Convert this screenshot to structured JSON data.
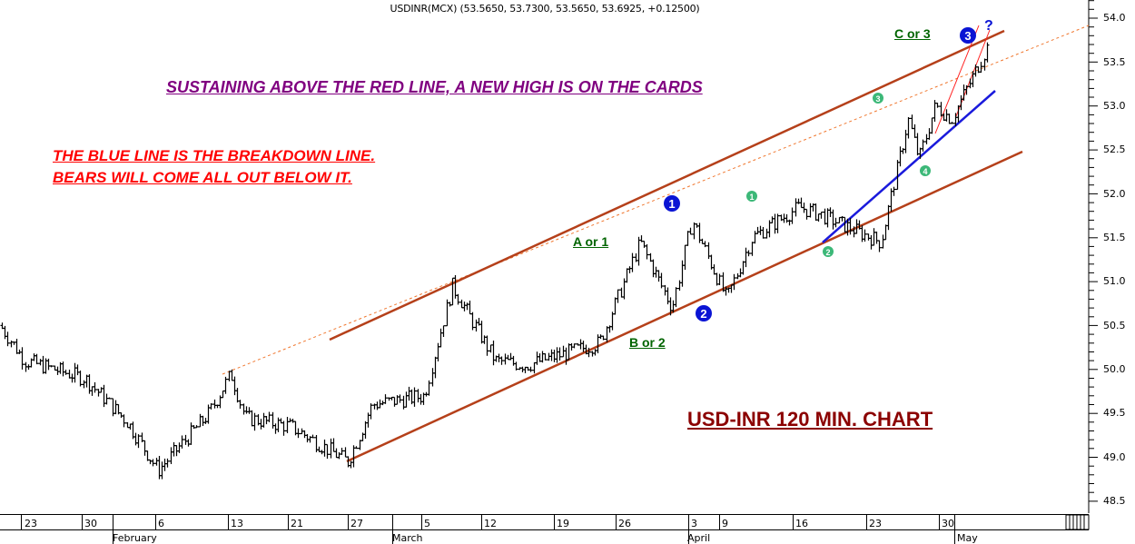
{
  "header": {
    "title": "USDINR(MCX) (53.5650, 53.7300, 53.5650, 53.6925, +0.12500)"
  },
  "annotations": {
    "purple": "SUSTAINING ABOVE THE RED LINE, A NEW HIGH IS ON THE CARDS",
    "red_line1": "THE BLUE LINE IS THE BREAKDOWN LINE.",
    "red_line2": "BEARS WILL COME ALL OUT BELOW IT.",
    "chart_caption": "USD-INR 120 MIN. CHART"
  },
  "wave_labels": {
    "a_or_1": "A or 1",
    "b_or_2": "B or 2",
    "c_or_3": "C or 3",
    "question": "?"
  },
  "wave_markers": {
    "major_1": "1",
    "major_2": "2",
    "major_3": "3",
    "minor_1": "1",
    "minor_2": "2",
    "minor_3": "3",
    "minor_4": "4"
  },
  "colors": {
    "channel": "#b5401a",
    "channel_dashed": "#f07830",
    "breakdown_line": "#1a1adc",
    "wedge": "#ff2020",
    "major_marker": "#0a14d4",
    "minor_marker": "#3cb878",
    "wave_label": "#006400",
    "purple_text": "#800080",
    "red_text": "#ff0000",
    "caption": "#8b0000"
  },
  "chart_data": {
    "type": "bar",
    "subtype": "ohlc",
    "title": "USDINR(MCX) (53.5650, 53.7300, 53.5650, 53.6925, +0.12500)",
    "caption": "USD-INR 120 MIN. CHART",
    "symbol": "USDINR(MCX)",
    "last_bar": {
      "open": 53.565,
      "high": 53.73,
      "low": 53.565,
      "close": 53.6925,
      "change": 0.125
    },
    "xlabel": "",
    "ylabel": "",
    "ylim": [
      48.3,
      54.2
    ],
    "y_ticks": [
      "54.0",
      "53.5",
      "53.0",
      "52.5",
      "52.0",
      "51.5",
      "51.0",
      "50.5",
      "50.0",
      "49.5",
      "49.0",
      "48.5"
    ],
    "x_ticks": [
      "23",
      "30",
      "6",
      "13",
      "21",
      "27",
      "5",
      "12",
      "19",
      "26",
      "3",
      "9",
      "16",
      "23",
      "30"
    ],
    "x_months": [
      "February",
      "March",
      "April",
      "May"
    ],
    "grid": false,
    "approx_price_path": [
      {
        "date": "Jan 20",
        "price": 50.5
      },
      {
        "date": "Jan 23",
        "price": 50.1
      },
      {
        "date": "Jan 30",
        "price": 49.9
      },
      {
        "date": "Feb 2",
        "price": 49.4
      },
      {
        "date": "Feb 6",
        "price": 48.85
      },
      {
        "date": "Feb 10",
        "price": 49.5
      },
      {
        "date": "Feb 13",
        "price": 49.95
      },
      {
        "date": "Feb 15",
        "price": 49.45
      },
      {
        "date": "Feb 21",
        "price": 49.35
      },
      {
        "date": "Feb 27",
        "price": 48.95
      },
      {
        "date": "Mar 1",
        "price": 49.6
      },
      {
        "date": "Mar 5",
        "price": 49.7
      },
      {
        "date": "Mar 9",
        "price": 50.95
      },
      {
        "date": "Mar 12",
        "price": 50.1
      },
      {
        "date": "Mar 16",
        "price": 50.05
      },
      {
        "date": "Mar 20",
        "price": 50.3
      },
      {
        "date": "Mar 26",
        "price": 51.45
      },
      {
        "date": "Mar 28",
        "price": 50.7
      },
      {
        "date": "Apr 1",
        "price": 51.7
      },
      {
        "date": "Apr 3",
        "price": 50.8
      },
      {
        "date": "Apr 6",
        "price": 51.5
      },
      {
        "date": "Apr 11",
        "price": 51.85
      },
      {
        "date": "Apr 16",
        "price": 51.75
      },
      {
        "date": "Apr 18",
        "price": 51.45
      },
      {
        "date": "Apr 23",
        "price": 52.85
      },
      {
        "date": "Apr 26",
        "price": 52.4
      },
      {
        "date": "Apr 28",
        "price": 53.0
      },
      {
        "date": "Apr 30",
        "price": 52.85
      },
      {
        "date": "May 2",
        "price": 53.69
      }
    ],
    "overlays": [
      {
        "name": "upper channel (red line)",
        "style": "solid",
        "color": "#b5401a",
        "from": {
          "date": "Feb 27",
          "price": 50.35
        },
        "to": {
          "date": "May 3",
          "price": 53.85
        }
      },
      {
        "name": "lower channel",
        "style": "solid",
        "color": "#b5401a",
        "from": {
          "date": "Feb 27",
          "price": 48.95
        },
        "to": {
          "date": "May 10",
          "price": 52.5
        }
      },
      {
        "name": "upper channel extension",
        "style": "dashed",
        "color": "#f07830",
        "from": {
          "date": "Feb 13",
          "price": 49.95
        },
        "to": {
          "date": "May 20",
          "price": 53.9
        }
      },
      {
        "name": "breakdown line (blue)",
        "style": "solid",
        "color": "#1a1adc",
        "from": {
          "date": "Apr 18",
          "price": 51.45
        },
        "to": {
          "date": "May 12",
          "price": 53.8
        }
      },
      {
        "name": "rising wedge",
        "style": "thin",
        "color": "#ff2020"
      }
    ],
    "wave_annotations": [
      {
        "label": "A or 1",
        "near_price": 51.5
      },
      {
        "label": "B or 2",
        "near_price": 50.3
      },
      {
        "label": "C or 3",
        "near_price": 53.8
      },
      {
        "marker": "1",
        "kind": "major",
        "near_price": 51.9
      },
      {
        "marker": "2",
        "kind": "major",
        "near_price": 50.65
      },
      {
        "marker": "3",
        "kind": "major",
        "near_price": 53.7
      },
      {
        "marker": "?",
        "kind": "major",
        "near_price": 53.9
      },
      {
        "marker": "1",
        "kind": "minor",
        "near_price": 51.9
      },
      {
        "marker": "2",
        "kind": "minor",
        "near_price": 51.35
      },
      {
        "marker": "3",
        "kind": "minor",
        "near_price": 53.05
      },
      {
        "marker": "4",
        "kind": "minor",
        "near_price": 52.25
      }
    ]
  }
}
